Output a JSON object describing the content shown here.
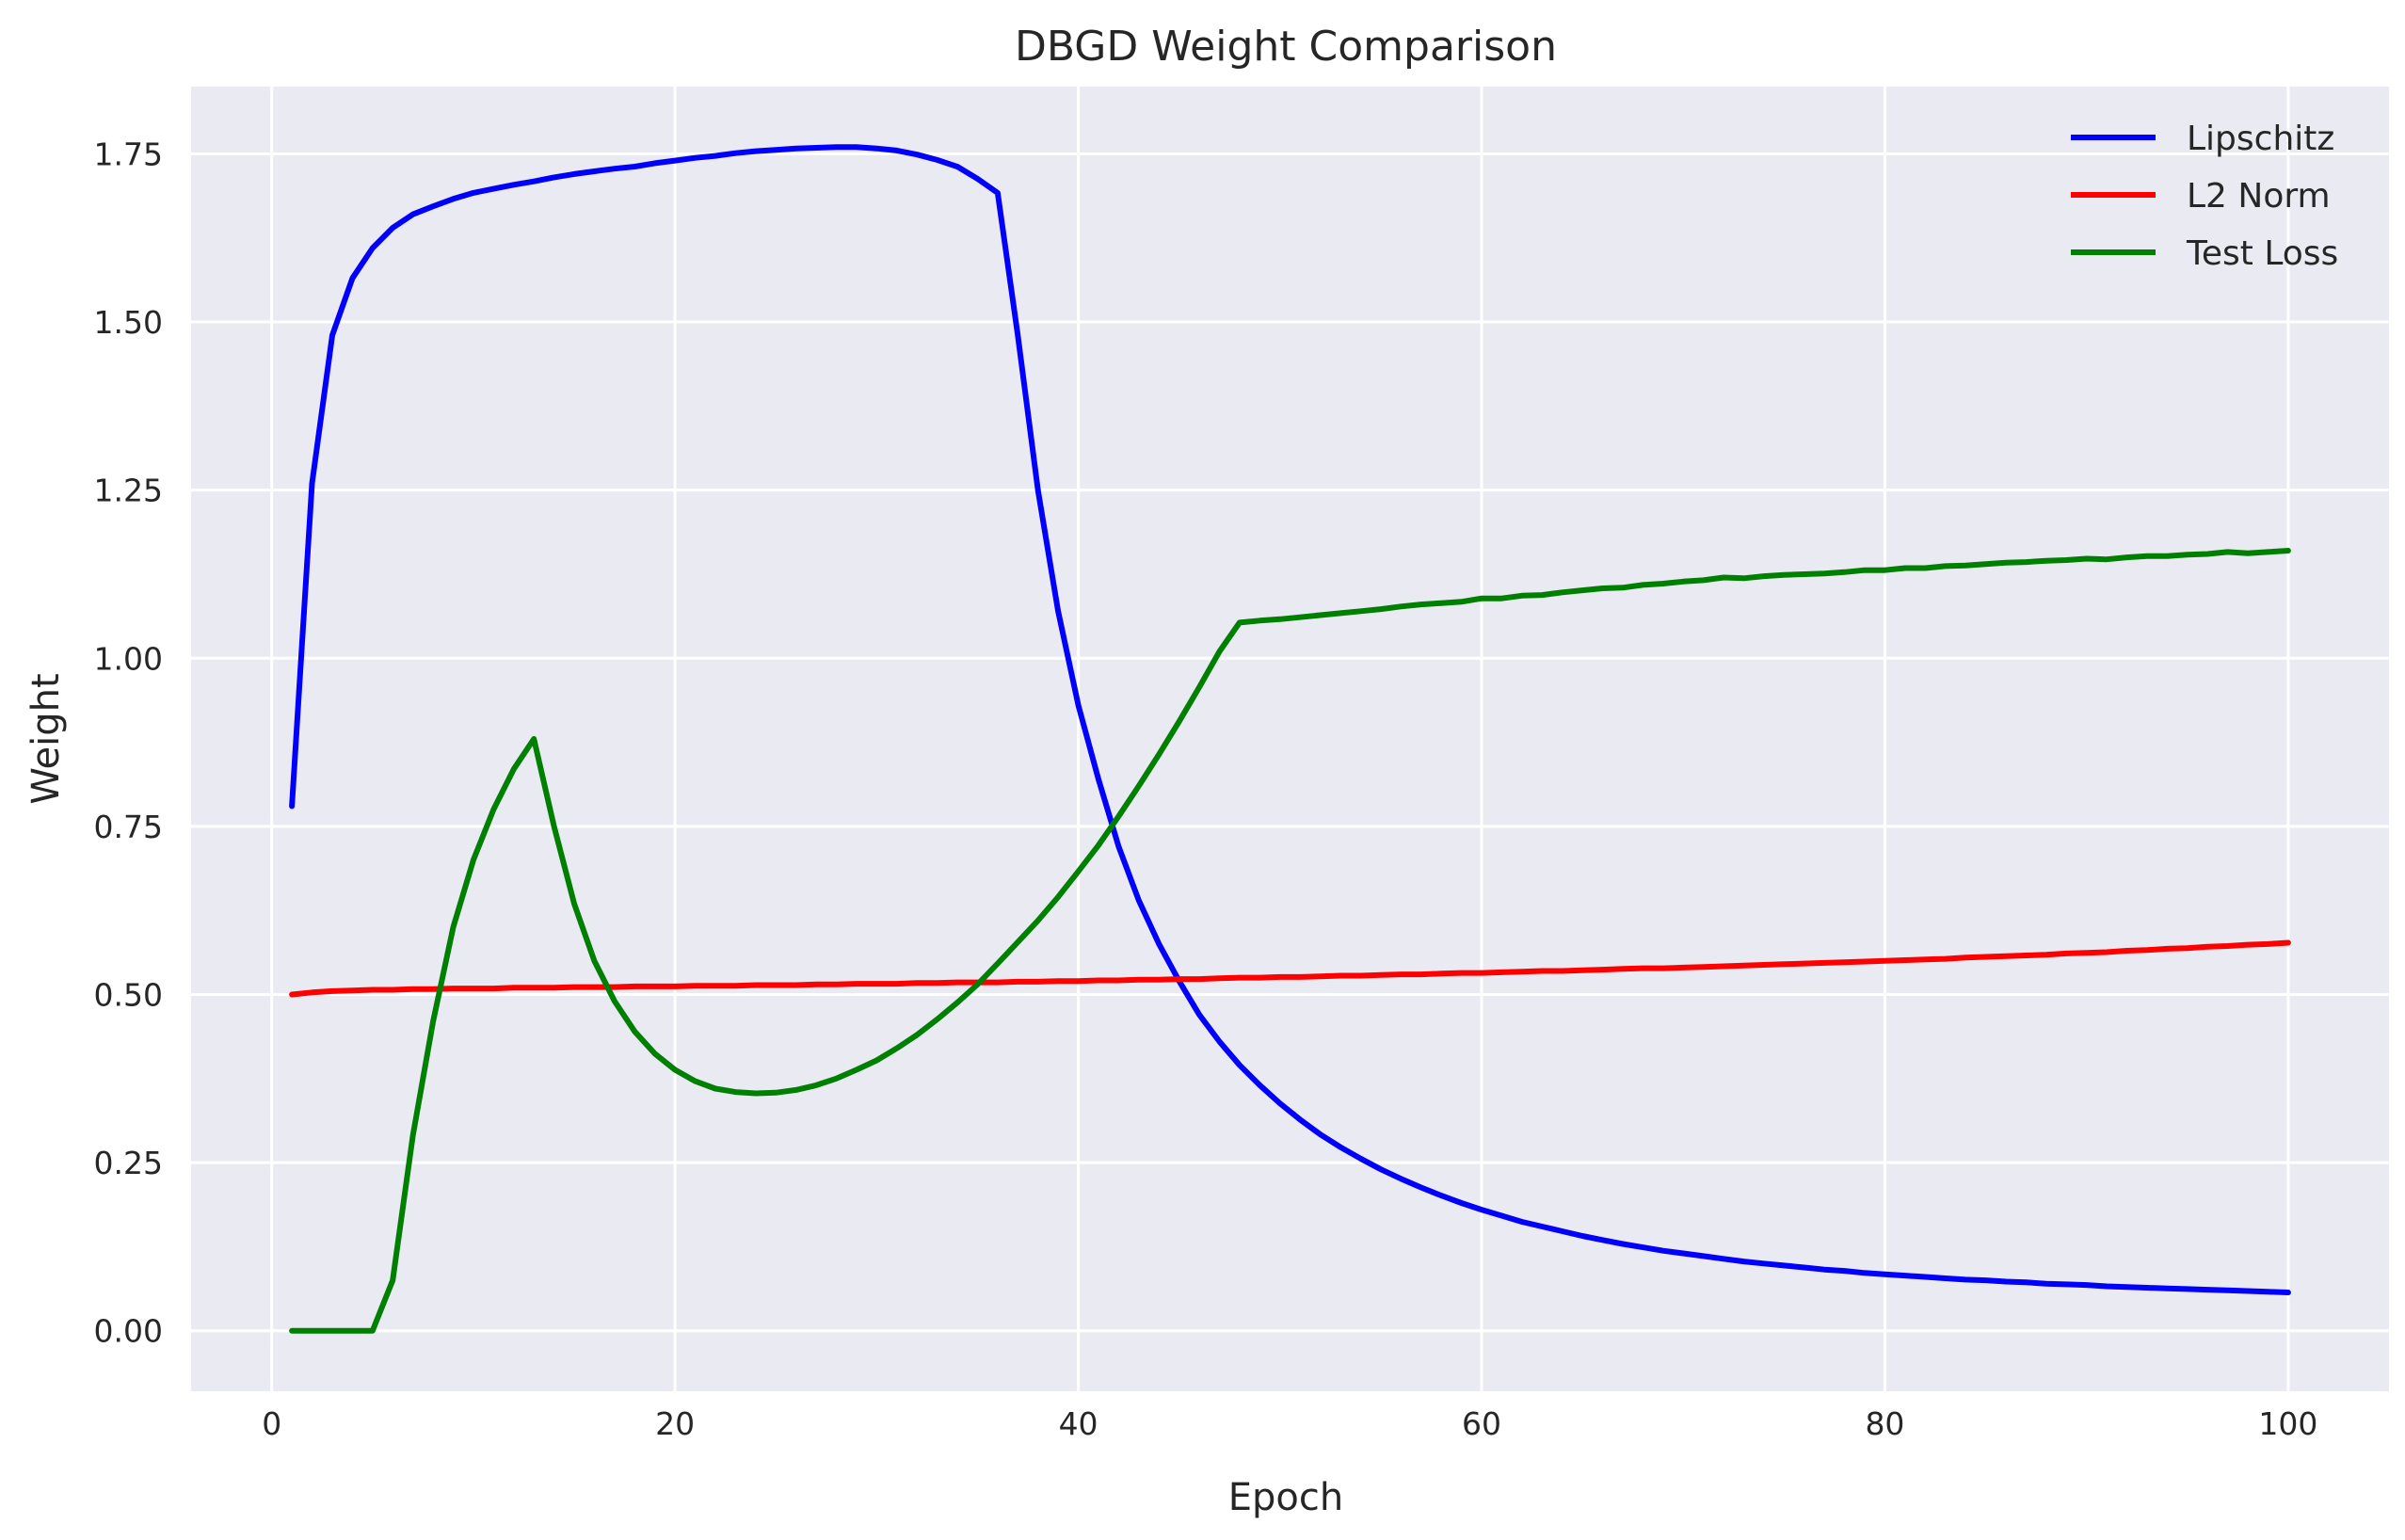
{
  "chart_data": {
    "type": "line",
    "title": "DBGD Weight Comparison",
    "xlabel": "Epoch",
    "ylabel": "Weight",
    "xlim": [
      -4,
      105
    ],
    "ylim": [
      -0.09,
      1.85
    ],
    "xticks": [
      0,
      20,
      40,
      60,
      80,
      100
    ],
    "yticks": [
      0.0,
      0.25,
      0.5,
      0.75,
      1.0,
      1.25,
      1.5,
      1.75
    ],
    "xtick_labels": [
      "0",
      "20",
      "40",
      "60",
      "80",
      "100"
    ],
    "ytick_labels": [
      "0.00",
      "0.25",
      "0.50",
      "0.75",
      "1.00",
      "1.25",
      "1.50",
      "1.75"
    ],
    "grid": true,
    "background_color": "#eaeaf2",
    "legend_position": "top-right",
    "series": [
      {
        "name": "Lipschitz",
        "color": "#0000ff",
        "x": [
          1,
          2,
          3,
          4,
          5,
          6,
          7,
          8,
          9,
          10,
          11,
          12,
          13,
          14,
          15,
          16,
          17,
          18,
          19,
          20,
          21,
          22,
          23,
          24,
          25,
          26,
          27,
          28,
          29,
          30,
          31,
          32,
          33,
          34,
          35,
          36,
          37,
          38,
          39,
          40,
          41,
          42,
          43,
          44,
          45,
          46,
          47,
          48,
          49,
          50,
          51,
          52,
          53,
          54,
          55,
          56,
          57,
          58,
          59,
          60,
          61,
          62,
          63,
          64,
          65,
          66,
          67,
          68,
          69,
          70,
          71,
          72,
          73,
          74,
          75,
          76,
          77,
          78,
          79,
          80,
          81,
          82,
          83,
          84,
          85,
          86,
          87,
          88,
          89,
          90,
          91,
          92,
          93,
          94,
          95,
          96,
          97,
          98,
          99,
          100
        ],
        "y": [
          0.78,
          1.26,
          1.48,
          1.565,
          1.61,
          1.64,
          1.66,
          1.672,
          1.683,
          1.692,
          1.698,
          1.704,
          1.709,
          1.715,
          1.72,
          1.724,
          1.728,
          1.731,
          1.736,
          1.74,
          1.744,
          1.747,
          1.751,
          1.754,
          1.756,
          1.758,
          1.759,
          1.76,
          1.76,
          1.758,
          1.755,
          1.749,
          1.741,
          1.731,
          1.713,
          1.692,
          1.48,
          1.25,
          1.07,
          0.93,
          0.82,
          0.72,
          0.64,
          0.575,
          0.52,
          0.47,
          0.43,
          0.395,
          0.365,
          0.338,
          0.314,
          0.292,
          0.273,
          0.256,
          0.24,
          0.226,
          0.213,
          0.201,
          0.19,
          0.18,
          0.171,
          0.162,
          0.155,
          0.148,
          0.141,
          0.135,
          0.129,
          0.124,
          0.119,
          0.115,
          0.111,
          0.107,
          0.103,
          0.1,
          0.097,
          0.094,
          0.091,
          0.089,
          0.086,
          0.084,
          0.082,
          0.08,
          0.078,
          0.076,
          0.075,
          0.073,
          0.072,
          0.07,
          0.069,
          0.068,
          0.066,
          0.065,
          0.064,
          0.063,
          0.062,
          0.061,
          0.06,
          0.059,
          0.058,
          0.057
        ]
      },
      {
        "name": "L2 Norm",
        "color": "#ff0000",
        "x": [
          1,
          2,
          3,
          4,
          5,
          6,
          7,
          8,
          9,
          10,
          11,
          12,
          13,
          14,
          15,
          16,
          17,
          18,
          19,
          20,
          21,
          22,
          23,
          24,
          25,
          26,
          27,
          28,
          29,
          30,
          31,
          32,
          33,
          34,
          35,
          36,
          37,
          38,
          39,
          40,
          41,
          42,
          43,
          44,
          45,
          46,
          47,
          48,
          49,
          50,
          51,
          52,
          53,
          54,
          55,
          56,
          57,
          58,
          59,
          60,
          61,
          62,
          63,
          64,
          65,
          66,
          67,
          68,
          69,
          70,
          71,
          72,
          73,
          74,
          75,
          76,
          77,
          78,
          79,
          80,
          81,
          82,
          83,
          84,
          85,
          86,
          87,
          88,
          89,
          90,
          91,
          92,
          93,
          94,
          95,
          96,
          97,
          98,
          99,
          100
        ],
        "y": [
          0.5,
          0.503,
          0.505,
          0.506,
          0.507,
          0.507,
          0.508,
          0.508,
          0.509,
          0.509,
          0.509,
          0.51,
          0.51,
          0.51,
          0.511,
          0.511,
          0.511,
          0.512,
          0.512,
          0.512,
          0.513,
          0.513,
          0.513,
          0.514,
          0.514,
          0.514,
          0.515,
          0.515,
          0.516,
          0.516,
          0.516,
          0.517,
          0.517,
          0.518,
          0.518,
          0.518,
          0.519,
          0.519,
          0.52,
          0.52,
          0.521,
          0.521,
          0.522,
          0.522,
          0.523,
          0.523,
          0.524,
          0.525,
          0.525,
          0.526,
          0.526,
          0.527,
          0.528,
          0.528,
          0.529,
          0.53,
          0.53,
          0.531,
          0.532,
          0.532,
          0.533,
          0.534,
          0.535,
          0.535,
          0.536,
          0.537,
          0.538,
          0.539,
          0.539,
          0.54,
          0.541,
          0.542,
          0.543,
          0.544,
          0.545,
          0.546,
          0.547,
          0.548,
          0.549,
          0.55,
          0.551,
          0.552,
          0.553,
          0.555,
          0.556,
          0.557,
          0.558,
          0.559,
          0.561,
          0.562,
          0.563,
          0.565,
          0.566,
          0.568,
          0.569,
          0.571,
          0.572,
          0.574,
          0.575,
          0.577
        ]
      },
      {
        "name": "Test Loss",
        "color": "#008000",
        "x": [
          1,
          2,
          3,
          4,
          5,
          6,
          7,
          8,
          9,
          10,
          11,
          12,
          13,
          14,
          15,
          16,
          17,
          18,
          19,
          20,
          21,
          22,
          23,
          24,
          25,
          26,
          27,
          28,
          29,
          30,
          31,
          32,
          33,
          34,
          35,
          36,
          37,
          38,
          39,
          40,
          41,
          42,
          43,
          44,
          45,
          46,
          47,
          48,
          49,
          50,
          51,
          52,
          53,
          54,
          55,
          56,
          57,
          58,
          59,
          60,
          61,
          62,
          63,
          64,
          65,
          66,
          67,
          68,
          69,
          70,
          71,
          72,
          73,
          74,
          75,
          76,
          77,
          78,
          79,
          80,
          81,
          82,
          83,
          84,
          85,
          86,
          87,
          88,
          89,
          90,
          91,
          92,
          93,
          94,
          95,
          96,
          97,
          98,
          99,
          100
        ],
        "y": [
          0.0,
          0.0,
          0.0,
          0.0,
          0.0,
          0.075,
          0.29,
          0.46,
          0.6,
          0.7,
          0.775,
          0.835,
          0.88,
          0.75,
          0.635,
          0.55,
          0.49,
          0.445,
          0.412,
          0.388,
          0.371,
          0.36,
          0.355,
          0.353,
          0.354,
          0.358,
          0.365,
          0.375,
          0.388,
          0.402,
          0.42,
          0.44,
          0.463,
          0.488,
          0.515,
          0.546,
          0.578,
          0.61,
          0.645,
          0.683,
          0.722,
          0.765,
          0.81,
          0.857,
          0.906,
          0.957,
          1.01,
          1.053,
          1.056,
          1.058,
          1.061,
          1.064,
          1.067,
          1.07,
          1.073,
          1.077,
          1.08,
          1.082,
          1.084,
          1.089,
          1.089,
          1.093,
          1.094,
          1.098,
          1.101,
          1.104,
          1.105,
          1.109,
          1.111,
          1.114,
          1.116,
          1.12,
          1.119,
          1.122,
          1.124,
          1.125,
          1.126,
          1.128,
          1.131,
          1.131,
          1.134,
          1.134,
          1.137,
          1.138,
          1.14,
          1.142,
          1.143,
          1.145,
          1.146,
          1.148,
          1.147,
          1.15,
          1.152,
          1.152,
          1.154,
          1.155,
          1.158,
          1.156,
          1.158,
          1.16
        ]
      }
    ]
  }
}
